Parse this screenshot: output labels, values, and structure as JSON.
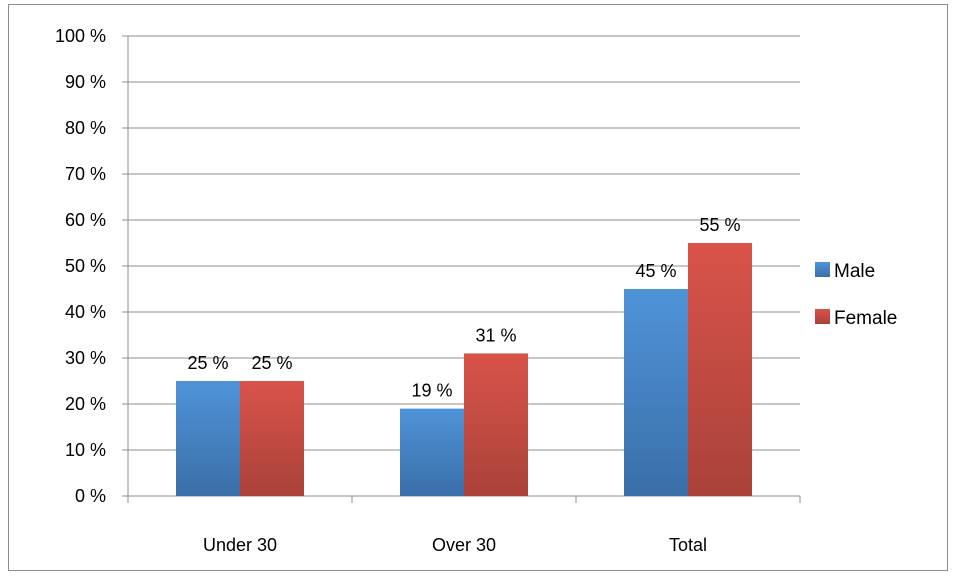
{
  "chart_data": {
    "type": "bar",
    "categories": [
      "Under 30",
      "Over 30",
      "Total"
    ],
    "series": [
      {
        "name": "Male",
        "values": [
          25,
          19,
          45
        ],
        "data_labels": [
          "25 %",
          "19 %",
          "45 %"
        ],
        "color_light": "#4f93d8",
        "color_dark": "#3a6fa8"
      },
      {
        "name": "Female",
        "values": [
          25,
          31,
          55
        ],
        "data_labels": [
          "25 %",
          "31 %",
          "55 %"
        ],
        "color_light": "#d9534a",
        "color_dark": "#a9423a"
      }
    ],
    "ylim": [
      0,
      100
    ],
    "yticks": [
      0,
      10,
      20,
      30,
      40,
      50,
      60,
      70,
      80,
      90,
      100
    ],
    "ytick_labels": [
      "0 %",
      "10 %",
      "20 %",
      "30 %",
      "40 %",
      "50 %",
      "60 %",
      "70 %",
      "80 %",
      "90 %",
      "100 %"
    ],
    "grid": true,
    "legend_position": "right",
    "title": "",
    "xlabel": "",
    "ylabel": "",
    "colors": {
      "grid": "#8c8c8c",
      "axis": "#8c8c8c",
      "frame": "#8c8c8c"
    }
  }
}
